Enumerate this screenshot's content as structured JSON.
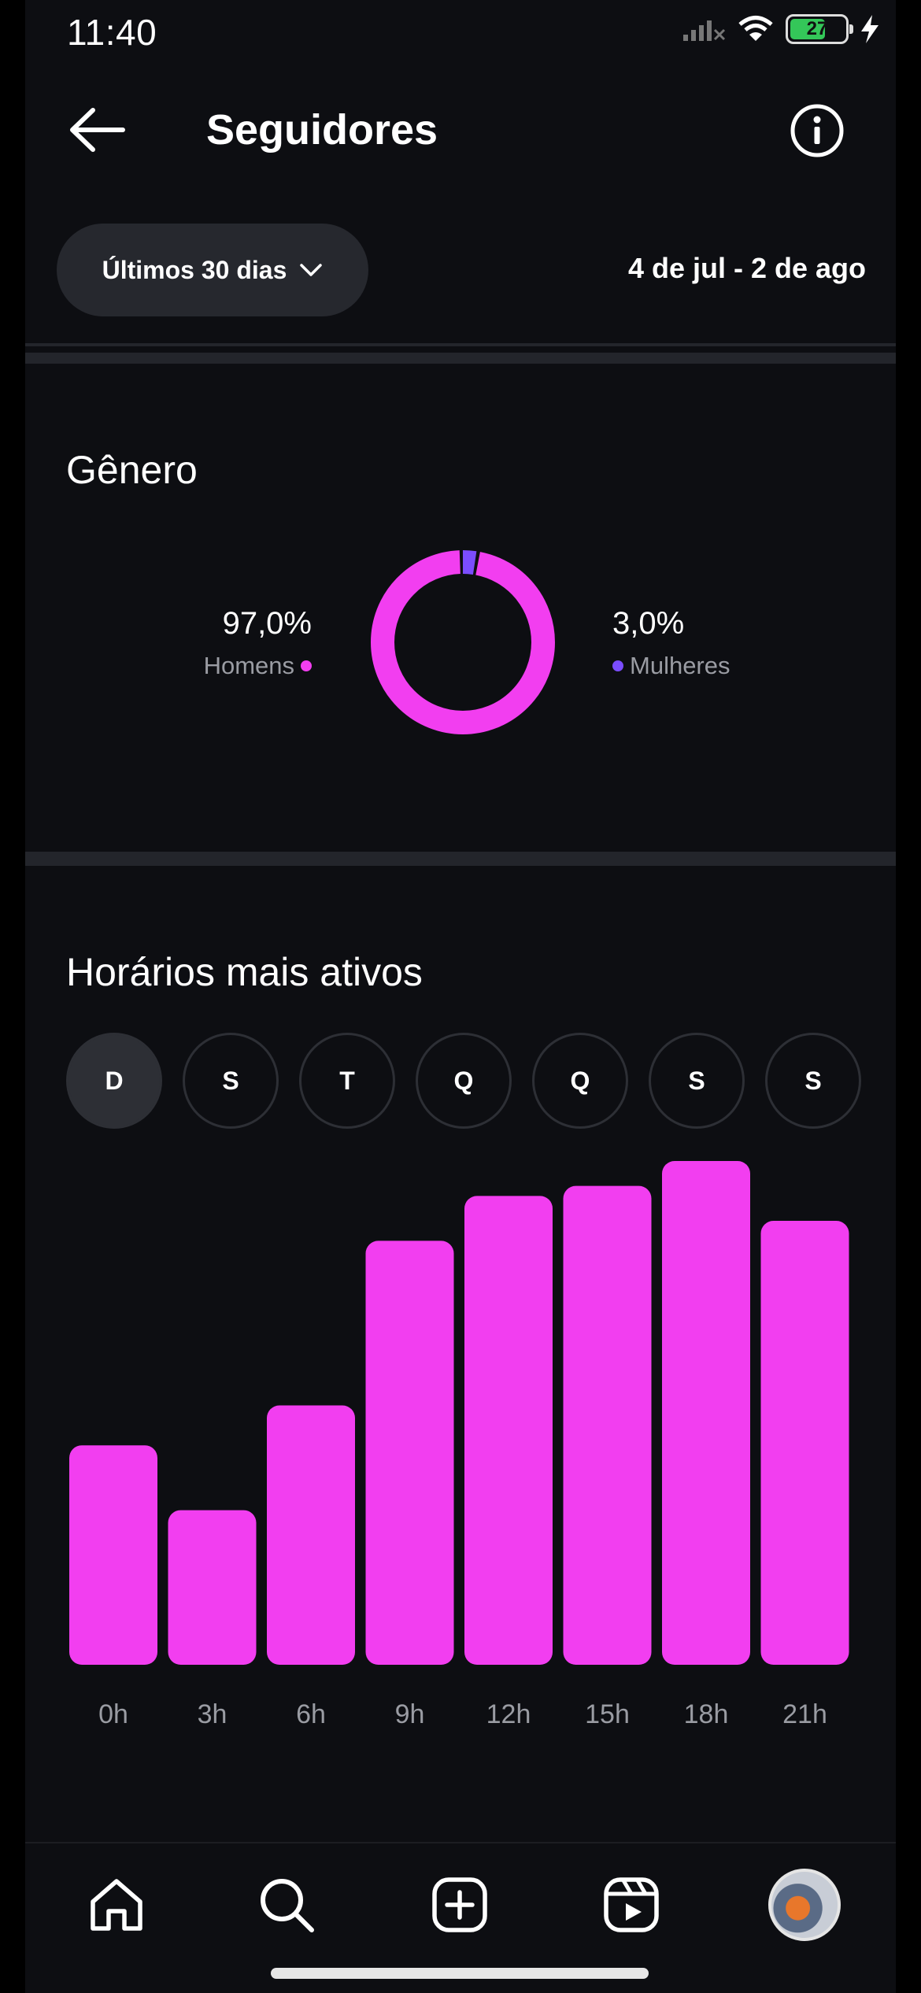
{
  "status_bar": {
    "time": "11:40",
    "battery_level": "27"
  },
  "header": {
    "title": "Seguidores"
  },
  "filters": {
    "period_label": "Últimos 30 dias",
    "date_range": "4 de jul - 2 de ago"
  },
  "gender": {
    "title": "Gênero",
    "men": {
      "value": "97,0%",
      "label": "Homens",
      "fraction": 0.97,
      "color": "#f23ef0"
    },
    "women": {
      "value": "3,0%",
      "label": "Mulheres",
      "fraction": 0.03,
      "color": "#7b4dff"
    }
  },
  "active_times": {
    "title": "Horários mais ativos",
    "days": [
      "D",
      "S",
      "T",
      "Q",
      "Q",
      "S",
      "S"
    ],
    "selected_day_index": 0,
    "bar_color": "#f23ef0"
  },
  "chart_data": {
    "type": "bar",
    "categories": [
      "0h",
      "3h",
      "6h",
      "9h",
      "12h",
      "15h",
      "18h",
      "21h"
    ],
    "values": [
      44,
      31,
      52,
      85,
      94,
      96,
      101,
      89
    ],
    "ylim": [
      0,
      101
    ],
    "grid": false,
    "legend": "none"
  },
  "bottom_nav": {
    "icons": [
      "home-icon",
      "search-icon",
      "create-post-icon",
      "reels-icon",
      "profile-avatar"
    ]
  }
}
